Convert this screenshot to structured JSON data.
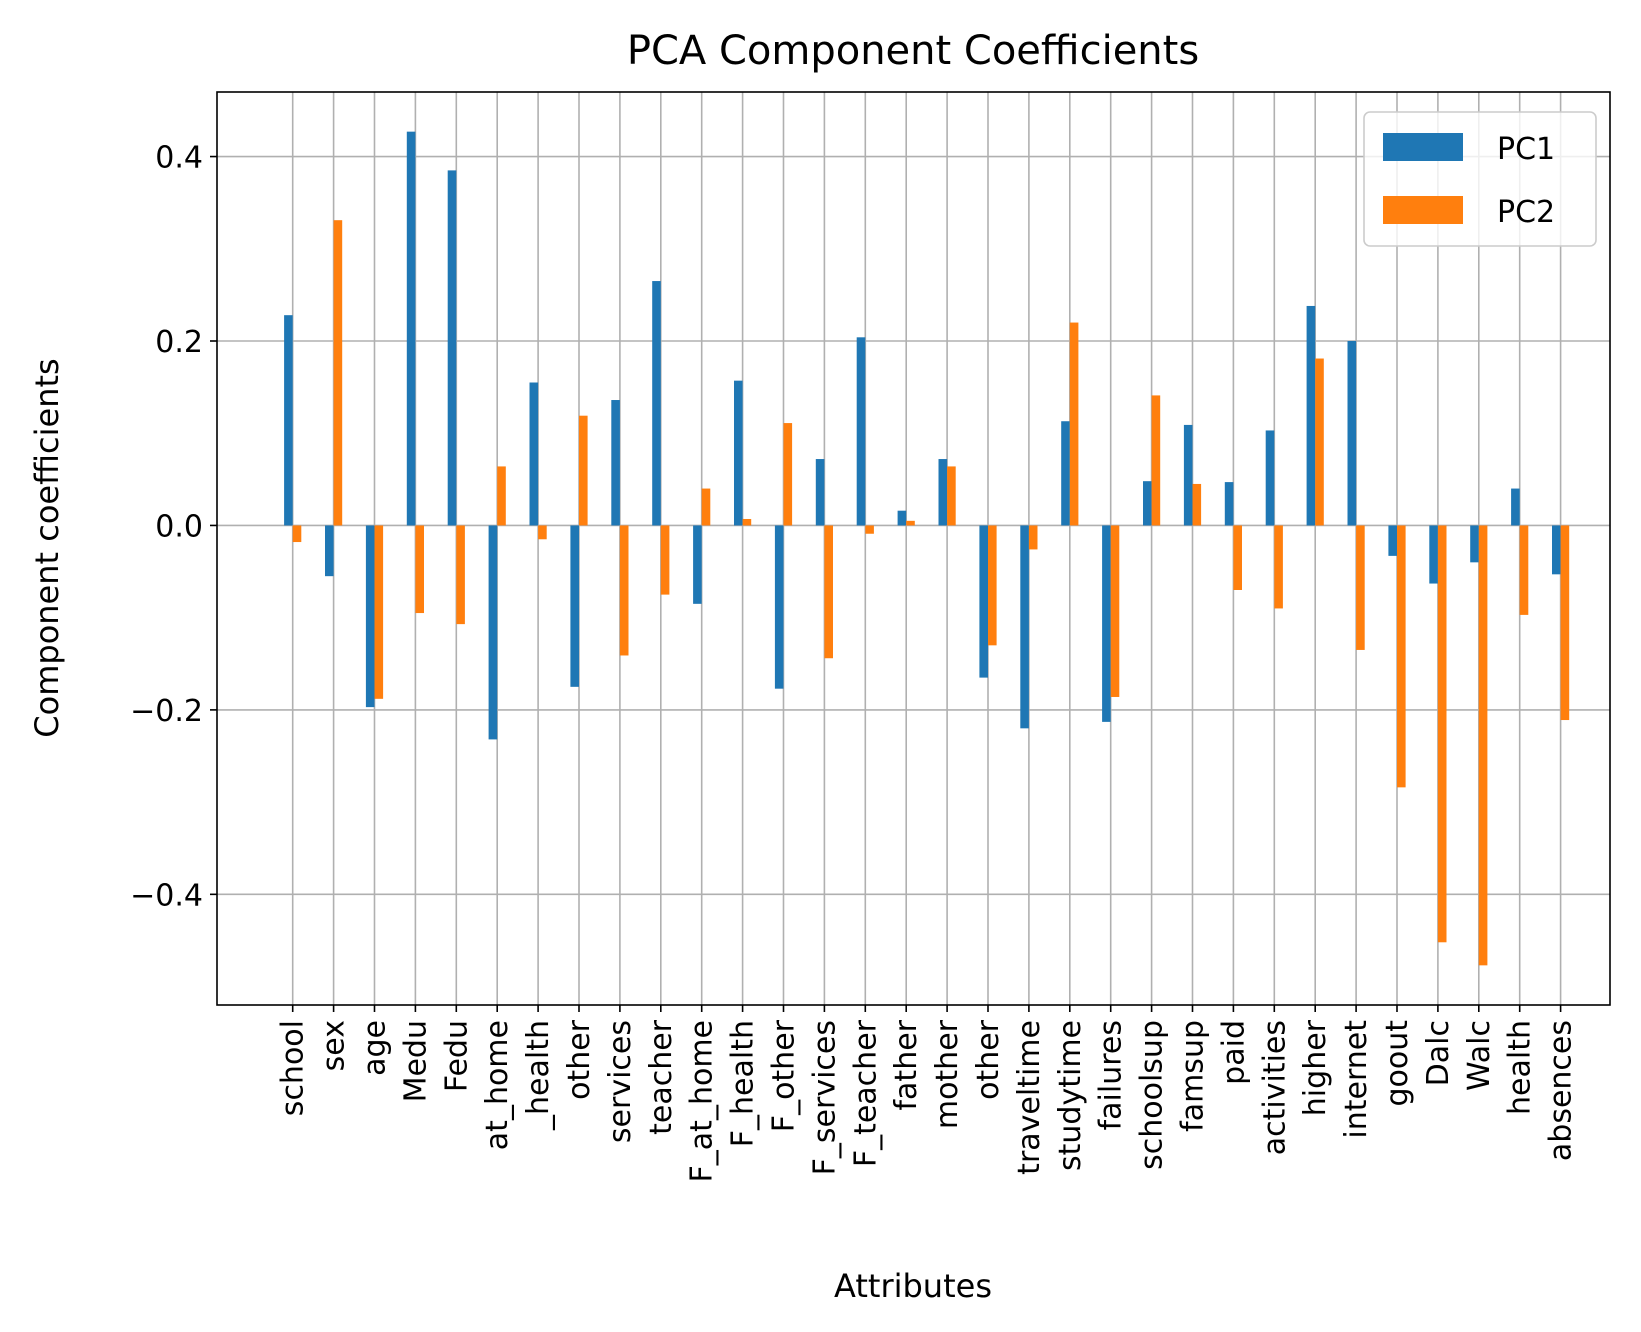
{
  "chart_data": {
    "type": "bar",
    "title": "PCA Component Coefficients",
    "xlabel": "Attributes",
    "ylabel": "Component coefficients",
    "ylim": [
      -0.52,
      0.47
    ],
    "yticks": [
      -0.4,
      -0.2,
      0.0,
      0.2,
      0.4
    ],
    "ytick_labels": [
      "−0.4",
      "−0.2",
      "0.0",
      "0.2",
      "0.4"
    ],
    "grid": true,
    "legend_position": "top-right",
    "categories": [
      "school",
      "sex",
      "age",
      "Medu",
      "Fedu",
      "at_home",
      "_health",
      "other",
      "services",
      "teacher",
      "F_at_home",
      "F_health",
      "F_other",
      "F_services",
      "F_teacher",
      "father",
      "mother",
      "other",
      "traveltime",
      "studytime",
      "failures",
      "schoolsup",
      "famsup",
      "paid",
      "activities",
      "higher",
      "internet",
      "goout",
      "Dalc",
      "Walc",
      "health",
      "absences"
    ],
    "series": [
      {
        "name": "PC1",
        "color": "#1f77b4",
        "values": [
          0.228,
          -0.055,
          -0.197,
          0.427,
          0.385,
          -0.232,
          0.155,
          -0.175,
          0.136,
          0.265,
          -0.085,
          0.157,
          -0.177,
          0.072,
          0.204,
          0.016,
          0.072,
          -0.165,
          -0.22,
          0.113,
          -0.213,
          0.048,
          0.109,
          0.047,
          0.103,
          0.238,
          0.2,
          -0.033,
          -0.063,
          -0.04,
          0.04,
          -0.053
        ]
      },
      {
        "name": "PC2",
        "color": "#ff7f0e",
        "values": [
          -0.018,
          0.331,
          -0.188,
          -0.095,
          -0.107,
          0.064,
          -0.015,
          0.119,
          -0.141,
          -0.075,
          0.04,
          0.007,
          0.111,
          -0.144,
          -0.009,
          0.005,
          0.064,
          -0.13,
          -0.026,
          0.22,
          -0.186,
          0.141,
          0.045,
          -0.07,
          -0.09,
          0.181,
          -0.135,
          -0.284,
          -0.452,
          -0.477,
          -0.097,
          -0.211
        ]
      }
    ]
  }
}
